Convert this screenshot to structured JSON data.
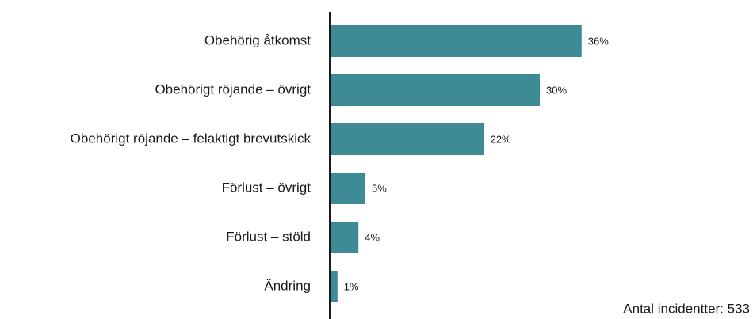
{
  "chart_data": {
    "type": "bar",
    "orientation": "horizontal",
    "categories": [
      "Obehörig åtkomst",
      "Obehörigt röjande – övrigt",
      "Obehörigt röjande – felaktigt brevutskick",
      "Förlust – övrigt",
      "Förlust – stöld",
      "Ändring"
    ],
    "values": [
      36,
      30,
      22,
      5,
      4,
      1
    ],
    "value_labels": [
      "36%",
      "30%",
      "22%",
      "5%",
      "4%",
      "1%"
    ],
    "color": "#3e8b96",
    "annotation": "Antal incidentter: 533"
  }
}
